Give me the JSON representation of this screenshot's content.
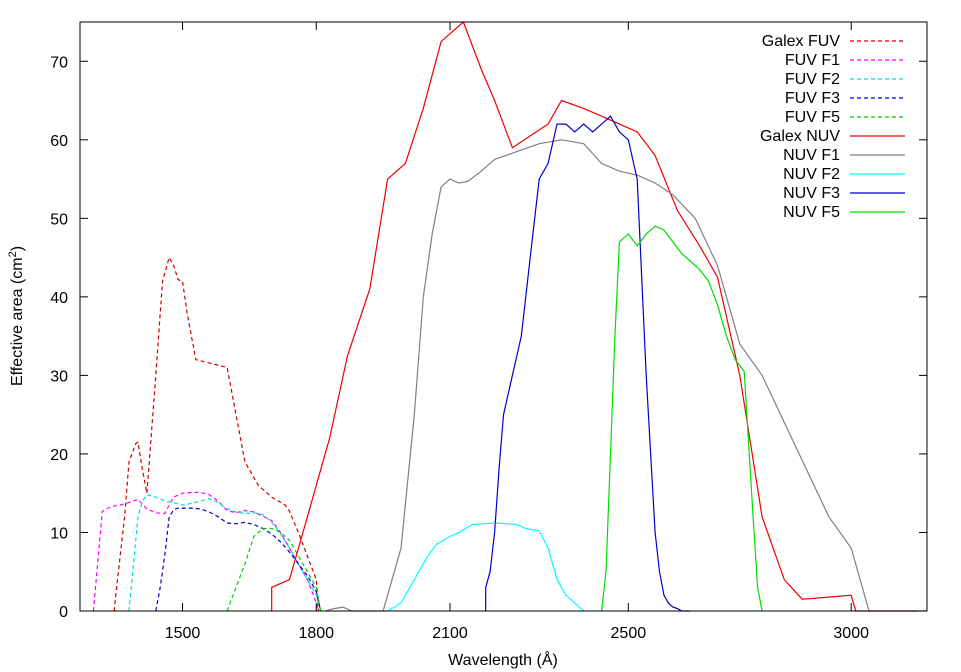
{
  "chart_data": {
    "type": "line",
    "title": "",
    "xlabel": "Wavelength (Å)",
    "ylabel": "Effective area (cm²)",
    "ylabel_parts": {
      "pre": "Effective area (cm",
      "sup": "2",
      "post": ")"
    },
    "xlim": [
      1270,
      3170
    ],
    "ylim": [
      0,
      75
    ],
    "xticks": [
      1500,
      1800,
      2100,
      2500,
      3000
    ],
    "yticks": [
      0,
      10,
      20,
      30,
      40,
      50,
      60,
      70
    ],
    "grid": false,
    "legend_position": "top-right",
    "series": [
      {
        "name": "Galex FUV",
        "color": "#cc0000",
        "dash": true,
        "x": [
          1347,
          1350,
          1370,
          1380,
          1395,
          1400,
          1410,
          1420,
          1440,
          1455,
          1470,
          1480,
          1490,
          1500,
          1510,
          1520,
          1530,
          1545,
          1600,
          1610,
          1640,
          1670,
          1700,
          1730,
          1740,
          1760,
          1800,
          1805
        ],
        "y": [
          0,
          2,
          12,
          19,
          21.3,
          21.5,
          18,
          15,
          30,
          42,
          45,
          44,
          42.2,
          42,
          38,
          35,
          32,
          31.8,
          31,
          28,
          19,
          16,
          14.5,
          13.5,
          12.7,
          10,
          4,
          0
        ]
      },
      {
        "name": "FUV F1",
        "color": "#ff00ff",
        "dash": true,
        "x": [
          1300,
          1320,
          1340,
          1360,
          1380,
          1400,
          1420,
          1440,
          1460,
          1480,
          1500,
          1520,
          1540,
          1560,
          1580,
          1600,
          1620,
          1640,
          1660,
          1680,
          1700,
          1720,
          1740,
          1760,
          1780,
          1800,
          1805
        ],
        "y": [
          0,
          12.7,
          13.3,
          13.5,
          13.8,
          14.2,
          13,
          12.5,
          12.4,
          14.5,
          15,
          15.1,
          15.1,
          14.8,
          14,
          12.8,
          12.5,
          12.8,
          12.6,
          12.1,
          11.5,
          10,
          8,
          6,
          4,
          1,
          0
        ]
      },
      {
        "name": "FUV F2",
        "color": "#00dddd",
        "dash": true,
        "x": [
          1380,
          1390,
          1400,
          1410,
          1420,
          1440,
          1460,
          1480,
          1500,
          1520,
          1540,
          1560,
          1580,
          1600,
          1620,
          1640,
          1660,
          1680,
          1700,
          1720,
          1740,
          1760,
          1780,
          1800,
          1810
        ],
        "y": [
          0,
          6,
          12,
          14,
          14.8,
          14.5,
          14,
          13.8,
          13.5,
          13.7,
          14,
          14.3,
          13.8,
          13,
          12.6,
          12.4,
          12.5,
          12.3,
          11.3,
          9.8,
          8,
          6,
          4,
          2,
          0
        ]
      },
      {
        "name": "FUV F3",
        "color": "#0000cc",
        "dash": true,
        "x": [
          1440,
          1450,
          1460,
          1470,
          1480,
          1490,
          1500,
          1520,
          1540,
          1560,
          1580,
          1600,
          1620,
          1640,
          1660,
          1680,
          1700,
          1720,
          1740,
          1760,
          1780,
          1800,
          1810
        ],
        "y": [
          0,
          3,
          7,
          12,
          12.9,
          13.1,
          13.1,
          13.1,
          13,
          12.6,
          12,
          11.2,
          11.1,
          11.3,
          11,
          10.5,
          9.8,
          8.8,
          7.5,
          6,
          4.5,
          2.5,
          0
        ]
      },
      {
        "name": "FUV F5",
        "color": "#00cc00",
        "dash": true,
        "x": [
          1600,
          1620,
          1640,
          1660,
          1680,
          1700,
          1720,
          1740,
          1760,
          1780,
          1790,
          1800,
          1810
        ],
        "y": [
          0,
          3,
          6,
          9.5,
          10.5,
          10.5,
          10,
          9,
          7,
          5,
          4,
          3,
          0
        ]
      },
      {
        "name": "Galex NUV",
        "color": "#ee0000",
        "dash": false,
        "x": [
          1700,
          1700,
          1740,
          1780,
          1830,
          1870,
          1920,
          1960,
          2000,
          2040,
          2080,
          2130,
          2170,
          2200,
          2240,
          2280,
          2320,
          2350,
          2400,
          2440,
          2480,
          2520,
          2560,
          2610,
          2660,
          2700,
          2750,
          2800,
          2850,
          2890,
          3000,
          3010,
          3150
        ],
        "y": [
          0,
          3,
          4,
          12,
          22,
          32.5,
          41,
          55,
          57,
          64,
          72.5,
          75,
          69,
          65,
          59,
          60.5,
          62,
          65,
          64,
          63,
          62,
          61,
          58,
          51,
          46.5,
          42.5,
          30,
          12,
          4,
          1.5,
          2,
          0,
          0
        ]
      },
      {
        "name": "NUV F1",
        "color": "#808080",
        "dash": false,
        "x": [
          1820,
          1840,
          1860,
          1880,
          1950,
          1990,
          2020,
          2040,
          2060,
          2080,
          2100,
          2120,
          2140,
          2170,
          2200,
          2250,
          2300,
          2350,
          2400,
          2440,
          2480,
          2520,
          2560,
          2600,
          2650,
          2700,
          2750,
          2800,
          2850,
          2900,
          2950,
          3000,
          3010,
          3040,
          3170
        ],
        "y": [
          0,
          0.3,
          0.5,
          0,
          0,
          8,
          25,
          40,
          48,
          54,
          55,
          54.5,
          54.7,
          56,
          57.5,
          58.5,
          59.5,
          60,
          59.5,
          57,
          56,
          55.5,
          54.5,
          53,
          50,
          44,
          34,
          30,
          24,
          18,
          12,
          8,
          6,
          0,
          0
        ]
      },
      {
        "name": "NUV F2",
        "color": "#00ffff",
        "dash": false,
        "x": [
          1950,
          1960,
          1990,
          2020,
          2050,
          2070,
          2100,
          2120,
          2150,
          2200,
          2230,
          2250,
          2270,
          2300,
          2320,
          2340,
          2360,
          2380,
          2400
        ],
        "y": [
          0,
          0,
          1,
          4,
          7,
          8.5,
          9.5,
          10,
          11,
          11.2,
          11.1,
          11,
          10.5,
          10.2,
          8,
          4,
          2,
          1,
          0
        ]
      },
      {
        "name": "NUV F3",
        "color": "#0000cc",
        "dash": false,
        "x": [
          2180,
          2180,
          2190,
          2200,
          2210,
          2220,
          2240,
          2260,
          2280,
          2300,
          2320,
          2340,
          2360,
          2380,
          2400,
          2420,
          2440,
          2460,
          2480,
          2500,
          2520,
          2540,
          2560,
          2570,
          2580,
          2590,
          2600,
          2610,
          2620,
          2640
        ],
        "y": [
          0,
          3,
          5,
          10,
          18,
          25,
          30,
          35,
          45,
          55,
          57,
          62,
          62,
          61,
          62,
          61,
          62,
          63,
          61,
          60,
          55,
          30,
          10,
          5,
          2,
          1,
          0.5,
          0.3,
          0,
          0
        ]
      },
      {
        "name": "NUV F5",
        "color": "#00dd00",
        "dash": false,
        "x": [
          2440,
          2450,
          2460,
          2470,
          2480,
          2500,
          2520,
          2540,
          2560,
          2580,
          2600,
          2620,
          2640,
          2660,
          2680,
          2700,
          2720,
          2740,
          2760,
          2780,
          2790,
          2800
        ],
        "y": [
          0,
          5,
          20,
          35,
          47,
          48,
          46.5,
          48,
          49,
          48.5,
          47,
          45.5,
          44.5,
          43.5,
          42,
          39,
          35,
          32,
          30.5,
          12,
          3,
          0
        ]
      }
    ]
  }
}
